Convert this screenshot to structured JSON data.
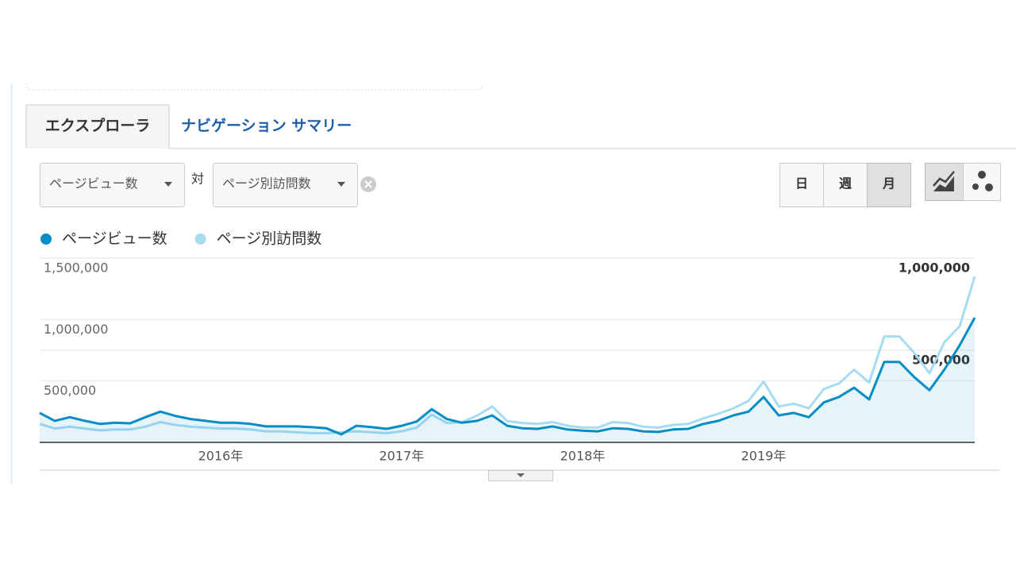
{
  "tabs": [
    "エクスプローラ",
    "ナビゲーション サマリー"
  ],
  "controls": {
    "metric1": "ページビュー数",
    "versus": "対",
    "metric2": "ページ別訪問数",
    "periods": [
      "日",
      "週",
      "月"
    ]
  },
  "chart_data": {
    "type": "line",
    "categories": [
      null,
      null,
      null,
      null,
      null,
      null,
      null,
      null,
      null,
      null,
      null,
      null,
      "2016年",
      null,
      null,
      null,
      null,
      null,
      null,
      null,
      null,
      null,
      null,
      null,
      "2017年",
      null,
      null,
      null,
      null,
      null,
      null,
      null,
      null,
      null,
      null,
      null,
      "2018年",
      null,
      null,
      null,
      null,
      null,
      null,
      null,
      null,
      null,
      null,
      null,
      "2019年",
      null,
      null,
      null,
      null,
      null,
      null,
      null,
      null,
      null,
      null,
      null,
      null,
      null,
      null
    ],
    "series": [
      {
        "name": "ページビュー数",
        "color": "#058dc7",
        "area": true,
        "values": [
          240000,
          175000,
          205000,
          175000,
          150000,
          160000,
          155000,
          205000,
          250000,
          215000,
          190000,
          175000,
          160000,
          160000,
          150000,
          130000,
          130000,
          130000,
          125000,
          115000,
          65000,
          135000,
          125000,
          110000,
          135000,
          170000,
          270000,
          190000,
          160000,
          175000,
          220000,
          135000,
          115000,
          110000,
          130000,
          105000,
          95000,
          90000,
          115000,
          110000,
          90000,
          85000,
          105000,
          110000,
          150000,
          175000,
          220000,
          250000,
          370000,
          220000,
          240000,
          205000,
          325000,
          370000,
          445000,
          350000,
          655000,
          655000,
          530000,
          425000,
          595000,
          790000,
          1015000
        ]
      },
      {
        "name": "ページ別訪問数",
        "color": "#a6dcf2",
        "axis": "y2",
        "values": [
          100000,
          75000,
          85000,
          75000,
          65000,
          70000,
          70000,
          85000,
          110000,
          95000,
          85000,
          80000,
          75000,
          75000,
          70000,
          60000,
          60000,
          55000,
          50000,
          50000,
          55000,
          60000,
          55000,
          50000,
          60000,
          80000,
          150000,
          105000,
          110000,
          145000,
          195000,
          115000,
          105000,
          100000,
          110000,
          90000,
          80000,
          80000,
          110000,
          105000,
          85000,
          80000,
          95000,
          100000,
          130000,
          155000,
          185000,
          225000,
          330000,
          195000,
          210000,
          185000,
          290000,
          320000,
          395000,
          325000,
          575000,
          575000,
          485000,
          375000,
          545000,
          630000,
          900000
        ]
      }
    ],
    "ylim": [
      0,
      1500000
    ],
    "yticks": [
      {
        "value": 500000,
        "label": "500,000"
      },
      {
        "value": 1000000,
        "label": "1,000,000"
      },
      {
        "value": 1500000,
        "label": "1,500,000"
      }
    ],
    "y2lim": [
      0,
      1000000
    ],
    "y2ticks": [
      {
        "value": 500000,
        "label": "500,000"
      },
      {
        "value": 1000000,
        "label": "1,000,000"
      }
    ],
    "grid": true
  }
}
